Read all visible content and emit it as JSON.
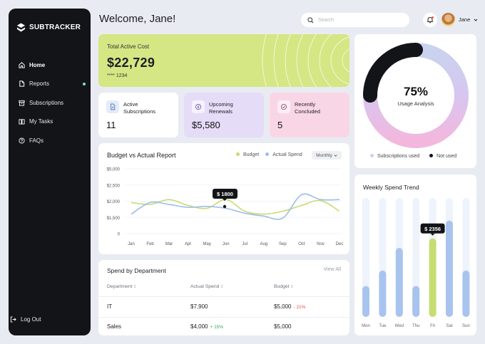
{
  "brand": {
    "name": "SUBTRACKER"
  },
  "sidebar": {
    "items": [
      {
        "label": "Home",
        "icon": "home-icon",
        "active": true
      },
      {
        "label": "Reports",
        "icon": "file-icon",
        "badge": true
      },
      {
        "label": "Subscriptions",
        "icon": "subscriptions-icon"
      },
      {
        "label": "My Tasks",
        "icon": "book-icon"
      },
      {
        "label": "FAQs",
        "icon": "help-icon"
      }
    ],
    "logout": "Log Out"
  },
  "header": {
    "welcome": "Welcome, Jane!",
    "search_placeholder": "Search",
    "user_name": "Jane"
  },
  "total": {
    "label": "Total Active Cost",
    "value": "$22,729",
    "card": "**** 1234"
  },
  "stats": [
    {
      "label_line1": "Active",
      "label_line2": "Subscriptions",
      "value": "11",
      "color": "#ffffff",
      "icon_bg": "#e4ecfa"
    },
    {
      "label_line1": "Upcoming",
      "label_line2": "Renewals",
      "value": "$5,580",
      "color": "#e5dcf8",
      "icon_bg": "#f6f2fd"
    },
    {
      "label_line1": "Recently",
      "label_line2": "Concluded",
      "value": "5",
      "color": "#f9d6e6",
      "icon_bg": "#fdeef5"
    }
  ],
  "usage": {
    "percent": "75%",
    "label": "Usage Analysis",
    "used_fraction": 0.75,
    "legend": [
      {
        "label": "Subscriptions used",
        "color": "#c9d3ef"
      },
      {
        "label": "Not used",
        "color": "#121417"
      }
    ]
  },
  "budget_chart": {
    "title": "Budget vs Actual Report",
    "filter": "Monthly",
    "tooltip": "$ 1800",
    "legend": [
      {
        "label": "Budget",
        "color": "#c7dc72"
      },
      {
        "label": "Actual Spend",
        "color": "#9dbdea"
      }
    ]
  },
  "weekly_chart": {
    "title": "Weekly Spend Trend",
    "tooltip": "$ 2356"
  },
  "chart_data": [
    {
      "type": "line",
      "title": "Budget vs Actual Report",
      "x": [
        "Jan",
        "Feb",
        "Mar",
        "Apr",
        "May",
        "Jun",
        "Jul",
        "Aug",
        "Sep",
        "Oct",
        "Nov",
        "Dec"
      ],
      "yticks": [
        "$5,000",
        "$2,500",
        "$2,000",
        "$1,500",
        "0"
      ],
      "series": [
        {
          "name": "Budget",
          "values": [
            1600,
            1500,
            1750,
            1450,
            1300,
            1750,
            1150,
            1000,
            1150,
            1450,
            1700,
            1150
          ]
        },
        {
          "name": "Actual Spend",
          "values": [
            1000,
            1600,
            1500,
            1350,
            1400,
            1300,
            1050,
            900,
            800,
            2000,
            1750,
            1750
          ]
        }
      ]
    },
    {
      "type": "bar",
      "title": "Weekly Spend Trend",
      "categories": [
        "Mon",
        "Tue",
        "Wed",
        "Thu",
        "Fri",
        "Sat",
        "Sun"
      ],
      "values": [
        26,
        39,
        58,
        26,
        66,
        81,
        39
      ],
      "highlight": "Fri",
      "highlight_label": "$ 2356"
    }
  ],
  "departments": {
    "title": "Spend by Department",
    "view_all": "View All",
    "columns": [
      "Department",
      "Actual Spend",
      "Budget"
    ],
    "rows": [
      {
        "dept": "IT",
        "actual": "$7,900",
        "actual_delta": "",
        "budget": "$5,000",
        "budget_delta": "- 21%"
      },
      {
        "dept": "Sales",
        "actual": "$4,000",
        "actual_delta": "+ 15%",
        "budget": "$5,000",
        "budget_delta": ""
      }
    ]
  }
}
